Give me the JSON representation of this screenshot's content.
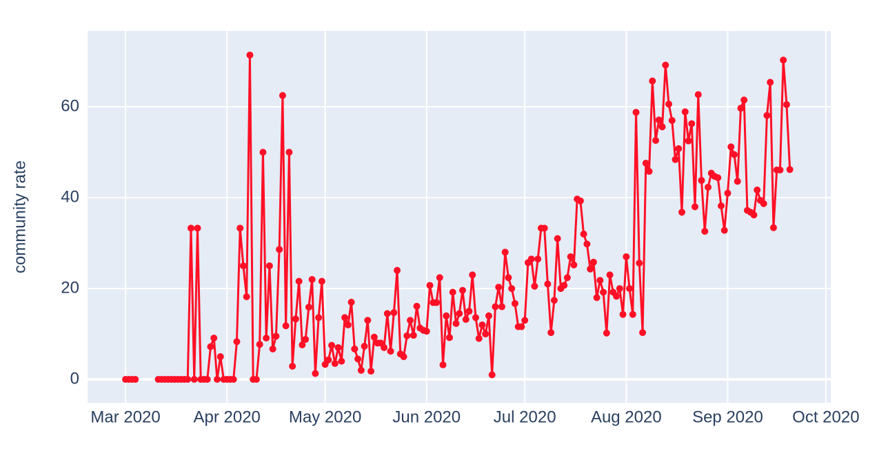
{
  "chart_data": {
    "type": "line",
    "y_label": "community rate",
    "color": "#ff1026",
    "grid": true,
    "xlim": [
      -11.6,
      215.5
    ],
    "ylim": [
      -5.15,
      76.7
    ],
    "xticks": [
      {
        "value": 0,
        "label": "Mar 2020"
      },
      {
        "value": 31,
        "label": "Apr 2020"
      },
      {
        "value": 61,
        "label": "May 2020"
      },
      {
        "value": 92,
        "label": "Jun 2020"
      },
      {
        "value": 122,
        "label": "Jul 2020"
      },
      {
        "value": 153,
        "label": "Aug 2020"
      },
      {
        "value": 184,
        "label": "Sep 2020"
      },
      {
        "value": 214,
        "label": "Oct 2020"
      }
    ],
    "yticks": [
      0,
      20,
      40,
      60
    ],
    "x": [
      0,
      1,
      2,
      3,
      4,
      5,
      6,
      7,
      8,
      9,
      10,
      11,
      12,
      13,
      14,
      15,
      16,
      17,
      18,
      19,
      20,
      21,
      22,
      23,
      24,
      25,
      26,
      27,
      28,
      29,
      30,
      31,
      32,
      33,
      34,
      35,
      36,
      37,
      38,
      39,
      40,
      41,
      42,
      43,
      44,
      45,
      46,
      47,
      48,
      49,
      50,
      51,
      52,
      53,
      54,
      55,
      56,
      57,
      58,
      59,
      60,
      61,
      62,
      63,
      64,
      65,
      66,
      67,
      68,
      69,
      70,
      71,
      72,
      73,
      74,
      75,
      76,
      77,
      78,
      79,
      80,
      81,
      82,
      83,
      84,
      85,
      86,
      87,
      88,
      89,
      90,
      91,
      92,
      93,
      94,
      95,
      96,
      97,
      98,
      99,
      100,
      101,
      102,
      103,
      104,
      105,
      106,
      107,
      108,
      109,
      110,
      111,
      112,
      113,
      114,
      115,
      116,
      117,
      118,
      119,
      120,
      121,
      122,
      123,
      124,
      125,
      126,
      127,
      128,
      129,
      130,
      131,
      132,
      133,
      134,
      135,
      136,
      137,
      138,
      139,
      140,
      141,
      142,
      143,
      144,
      145,
      146,
      147,
      148,
      149,
      150,
      151,
      152,
      153,
      154,
      155,
      156,
      157,
      158,
      159,
      160,
      161,
      162,
      163,
      164,
      165,
      166,
      167,
      168,
      169,
      170,
      171,
      172,
      173,
      174,
      175,
      176,
      177,
      178,
      179,
      180,
      181,
      182,
      183,
      184,
      185,
      186,
      187,
      188,
      189,
      190,
      191,
      192,
      193,
      194,
      195,
      196,
      197,
      198,
      199,
      200,
      201,
      202,
      203
    ],
    "values": [
      0,
      0,
      0,
      0,
      null,
      null,
      null,
      null,
      null,
      null,
      0,
      0,
      0,
      0,
      0,
      0,
      0,
      0,
      0,
      0,
      33.3,
      0,
      33.3,
      0,
      0,
      0,
      7.2,
      9.1,
      0,
      5,
      0,
      0,
      0,
      0,
      8.3,
      33.3,
      25,
      18.2,
      71.4,
      0,
      0,
      7.7,
      50,
      9.1,
      25,
      6.7,
      9.5,
      28.6,
      62.5,
      11.8,
      50,
      2.9,
      13.3,
      21.6,
      7.6,
      8.8,
      15.9,
      22,
      1.3,
      13.6,
      21.6,
      3.3,
      4.3,
      7.5,
      3.5,
      7,
      4,
      13.6,
      12,
      17,
      6.7,
      4.5,
      2,
      7.3,
      13,
      1.8,
      9.3,
      8,
      8,
      7,
      14.5,
      6.2,
      14.7,
      24,
      5.6,
      5,
      9.6,
      13,
      9.7,
      16.1,
      11.3,
      10.8,
      10.6,
      20.7,
      16.9,
      16.9,
      22.4,
      3.2,
      14,
      9.2,
      19.2,
      12.3,
      14.5,
      19.6,
      13.2,
      15,
      23,
      13.6,
      9,
      12,
      10,
      14,
      1,
      16,
      20.3,
      16,
      28,
      22.4,
      20,
      16.7,
      11.6,
      11.6,
      13,
      25.7,
      26.5,
      20.5,
      26.5,
      33.3,
      33.3,
      21,
      10.3,
      17.4,
      31,
      20,
      20.7,
      22.4,
      27,
      25.2,
      39.7,
      39.3,
      32,
      29.8,
      24.3,
      25.8,
      18,
      21.8,
      19.2,
      10.2,
      23,
      19.2,
      18.3,
      20,
      14.3,
      27,
      20,
      14.3,
      58.8,
      25.6,
      10.3,
      47.6,
      45.8,
      65.7,
      52.6,
      57.1,
      55.6,
      69.2,
      60.6,
      57,
      48.4,
      50.8,
      36.8,
      58.9,
      52.5,
      56.3,
      38,
      62.7,
      43.8,
      32.6,
      42.3,
      45.4,
      44.7,
      44.4,
      38.2,
      32.8,
      41,
      51.2,
      49.5,
      43.6,
      59.7,
      61.5,
      37.2,
      36.8,
      36.2,
      41.7,
      39.4,
      38.7,
      58.1,
      65.4,
      33.4,
      46.1,
      46.1,
      70.3,
      60.5,
      46.2
    ]
  }
}
